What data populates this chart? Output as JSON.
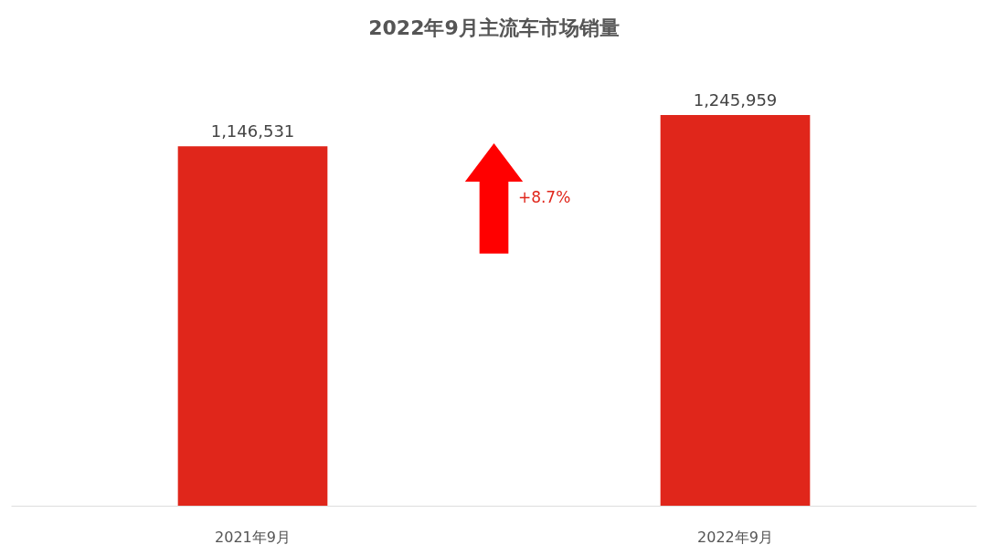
{
  "chart_data": {
    "type": "bar",
    "title": "2022年9月主流车市场销量",
    "categories": [
      "2021年9月",
      "2022年9月"
    ],
    "values": [
      1146531,
      1245959
    ],
    "color": "#e0261b",
    "value_labels": [
      "1,146,531",
      "1,245,959"
    ],
    "annotations": [
      "+8.7%"
    ]
  }
}
